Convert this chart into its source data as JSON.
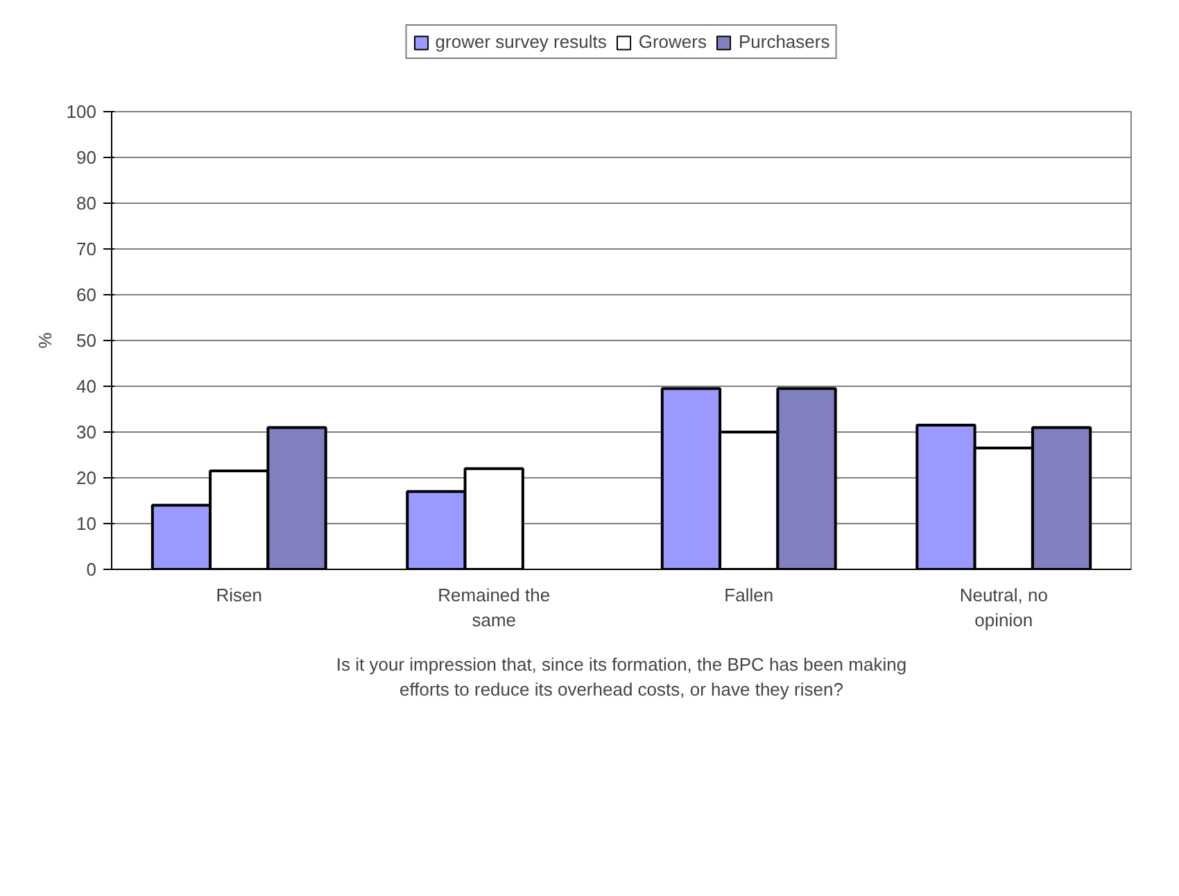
{
  "chart_data": {
    "type": "bar",
    "xlabel": "Is it your impression that, since its formation, the BPC has been making efforts to reduce its overhead costs, or have they risen?",
    "ylabel": "%",
    "categories": [
      "Risen",
      "Remained the same",
      "Fallen",
      "Neutral, no opinion"
    ],
    "series": [
      {
        "name": "grower survey results",
        "color": "#9999ff",
        "values": [
          14,
          17,
          39.5,
          31.5
        ]
      },
      {
        "name": "Growers",
        "color": "#ffffff",
        "values": [
          21.5,
          22,
          30,
          26.5
        ]
      },
      {
        "name": "Purchasers",
        "color": "#8080c0",
        "values": [
          31,
          null,
          39.5,
          31
        ]
      }
    ],
    "ylim": [
      0,
      100
    ],
    "yticks": [
      0,
      10,
      20,
      30,
      40,
      50,
      60,
      70,
      80,
      90,
      100
    ],
    "grid": "y",
    "legend": "top"
  }
}
